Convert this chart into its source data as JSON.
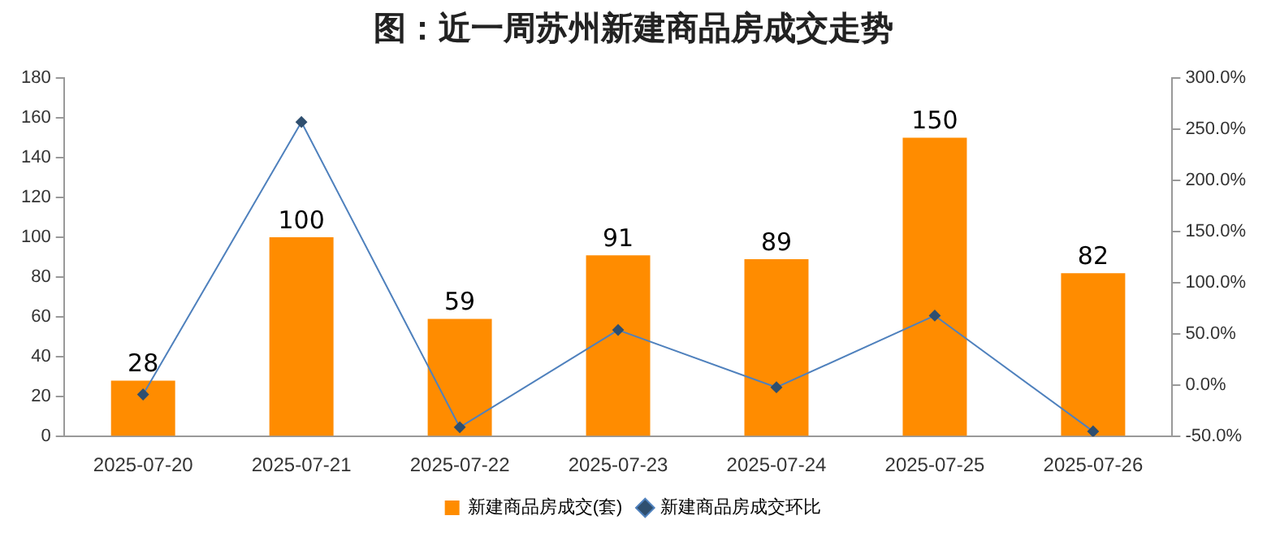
{
  "chart_data": {
    "type": "bar",
    "title": "图：近一周苏州新建商品房成交走势",
    "categories": [
      "2025-07-20",
      "2025-07-21",
      "2025-07-22",
      "2025-07-23",
      "2025-07-24",
      "2025-07-25",
      "2025-07-26"
    ],
    "series": [
      {
        "name": "新建商品房成交(套)",
        "color": "#ff8c00",
        "values": [
          28,
          100,
          59,
          91,
          89,
          150,
          82
        ],
        "value_labels": [
          "28",
          "100",
          "59",
          "91",
          "89",
          "150",
          "82"
        ]
      },
      {
        "name": "新建商品房成交环比",
        "type": "line",
        "axis": "y2",
        "color": "#4f81bd",
        "values": [
          -9,
          257,
          -41,
          54,
          -2,
          68,
          -45
        ]
      }
    ],
    "ylim": [
      0,
      180
    ],
    "yticks": [
      0,
      20,
      40,
      60,
      80,
      100,
      120,
      140,
      160,
      180
    ],
    "y2lim": [
      -50,
      300
    ],
    "y2ticks": [
      {
        "value": -50,
        "label": "-50.0%"
      },
      {
        "value": 0,
        "label": "0.0%"
      },
      {
        "value": 50,
        "label": "50.0%"
      },
      {
        "value": 100,
        "label": "100.0%"
      },
      {
        "value": 150,
        "label": "150.0%"
      },
      {
        "value": 200,
        "label": "200.0%"
      },
      {
        "value": 250,
        "label": "250.0%"
      },
      {
        "value": 300,
        "label": "300.0%"
      }
    ],
    "grid": false,
    "legend": "bottom",
    "marker": "diamond",
    "line_style": "solid"
  }
}
